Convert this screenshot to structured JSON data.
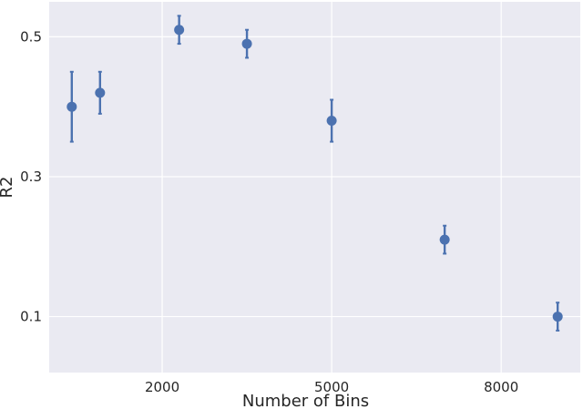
{
  "chart_data": {
    "type": "scatter",
    "xlabel": "Number of Bins",
    "ylabel": "R2",
    "xlim": [
      0,
      9400
    ],
    "ylim": [
      0.02,
      0.55
    ],
    "xticks": [
      2000,
      5000,
      8000
    ],
    "xtick_labels": [
      "2000",
      "5000",
      "8000"
    ],
    "yticks": [
      0.1,
      0.3,
      0.5
    ],
    "ytick_labels": [
      "0.1",
      "0.3",
      "0.5"
    ],
    "grid": true,
    "series": [
      {
        "points": [
          {
            "x": 400,
            "y": 0.4,
            "y_low": 0.35,
            "y_high": 0.45
          },
          {
            "x": 900,
            "y": 0.42,
            "y_low": 0.39,
            "y_high": 0.45
          },
          {
            "x": 2300,
            "y": 0.51,
            "y_low": 0.49,
            "y_high": 0.53
          },
          {
            "x": 3500,
            "y": 0.49,
            "y_low": 0.47,
            "y_high": 0.51
          },
          {
            "x": 5000,
            "y": 0.38,
            "y_low": 0.35,
            "y_high": 0.41
          },
          {
            "x": 7000,
            "y": 0.21,
            "y_low": 0.19,
            "y_high": 0.23
          },
          {
            "x": 9000,
            "y": 0.1,
            "y_low": 0.08,
            "y_high": 0.12
          }
        ]
      }
    ],
    "colors": {
      "plot_background": "#EAEAF2",
      "grid": "#FFFFFF",
      "marker": "#4C72B0",
      "text": "#262626"
    }
  }
}
